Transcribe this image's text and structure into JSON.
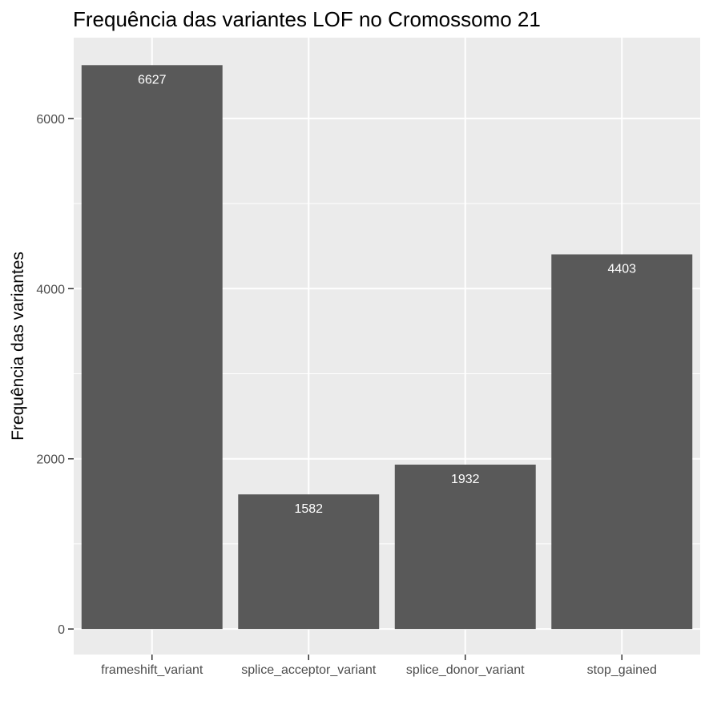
{
  "chart_data": {
    "type": "bar",
    "title": "Frequência das variantes LOF no Cromossomo 21",
    "xlabel": "",
    "ylabel": "Frequência das variantes",
    "categories": [
      "frameshift_variant",
      "splice_acceptor_variant",
      "splice_donor_variant",
      "stop_gained"
    ],
    "values": [
      6627,
      1582,
      1932,
      4403
    ],
    "data_labels": [
      "6627",
      "1582",
      "1932",
      "4403"
    ],
    "yticks": [
      0,
      2000,
      4000,
      6000
    ],
    "ytick_labels": [
      "0",
      "2000",
      "4000",
      "6000"
    ],
    "ylim": [
      -300,
      6950
    ],
    "grid": true,
    "legend": "none",
    "colors": {
      "bar": "#595959",
      "panel": "#ebebeb",
      "grid": "#ffffff",
      "data_label": "#ffffff",
      "tick_label": "#4d4d4d",
      "tick_mark": "#333333"
    }
  }
}
